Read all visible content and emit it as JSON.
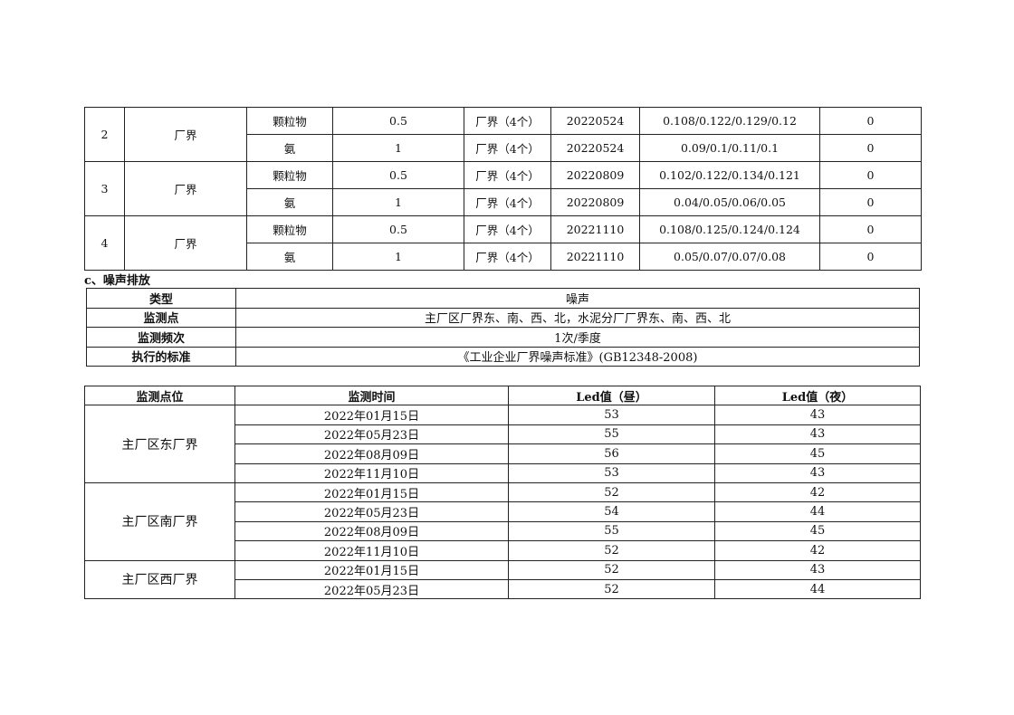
{
  "emission_table": {
    "groups": [
      {
        "no": "2",
        "location": "厂界",
        "rows": [
          {
            "pollutant": "颗粒物",
            "limit": "0.5",
            "points": "厂界（4个）",
            "date": "20220524",
            "values": "0.108/0.122/0.129/0.12",
            "exceed": "0"
          },
          {
            "pollutant": "氨",
            "limit": "1",
            "points": "厂界（4个）",
            "date": "20220524",
            "values": "0.09/0.1/0.11/0.1",
            "exceed": "0"
          }
        ]
      },
      {
        "no": "3",
        "location": "厂界",
        "rows": [
          {
            "pollutant": "颗粒物",
            "limit": "0.5",
            "points": "厂界（4个）",
            "date": "20220809",
            "values": "0.102/0.122/0.134/0.121",
            "exceed": "0"
          },
          {
            "pollutant": "氨",
            "limit": "1",
            "points": "厂界（4个）",
            "date": "20220809",
            "values": "0.04/0.05/0.06/0.05",
            "exceed": "0"
          }
        ]
      },
      {
        "no": "4",
        "location": "厂界",
        "rows": [
          {
            "pollutant": "颗粒物",
            "limit": "0.5",
            "points": "厂界（4个）",
            "date": "20221110",
            "values": "0.108/0.125/0.124/0.124",
            "exceed": "0"
          },
          {
            "pollutant": "氨",
            "limit": "1",
            "points": "厂界（4个）",
            "date": "20221110",
            "values": "0.05/0.07/0.07/0.08",
            "exceed": "0"
          }
        ]
      }
    ]
  },
  "section_title": "c、噪声排放",
  "noise_info": [
    {
      "key": "类型",
      "value": "噪声"
    },
    {
      "key": "监测点",
      "value": "主厂区厂界东、南、西、北，水泥分厂厂界东、南、西、北"
    },
    {
      "key": "监测频次",
      "value": "1次/季度"
    },
    {
      "key": "执行的标准",
      "value": "《工业企业厂界噪声标准》(GB12348-2008)"
    }
  ],
  "noise_table": {
    "headers": [
      "监测点位",
      "监测时间",
      "Led值（昼）",
      "Led值（夜）"
    ],
    "groups": [
      {
        "site": "主厂区东厂界",
        "rows": [
          {
            "date": "2022年01月15日",
            "day": "53",
            "night": "43"
          },
          {
            "date": "2022年05月23日",
            "day": "55",
            "night": "43"
          },
          {
            "date": "2022年08月09日",
            "day": "56",
            "night": "45"
          },
          {
            "date": "2022年11月10日",
            "day": "53",
            "night": "43"
          }
        ]
      },
      {
        "site": "主厂区南厂界",
        "rows": [
          {
            "date": "2022年01月15日",
            "day": "52",
            "night": "42"
          },
          {
            "date": "2022年05月23日",
            "day": "54",
            "night": "44"
          },
          {
            "date": "2022年08月09日",
            "day": "55",
            "night": "45"
          },
          {
            "date": "2022年11月10日",
            "day": "52",
            "night": "42"
          }
        ]
      },
      {
        "site": "主厂区西厂界",
        "rows": [
          {
            "date": "2022年01月15日",
            "day": "52",
            "night": "43"
          },
          {
            "date": "2022年05月23日",
            "day": "52",
            "night": "44"
          }
        ]
      }
    ]
  }
}
